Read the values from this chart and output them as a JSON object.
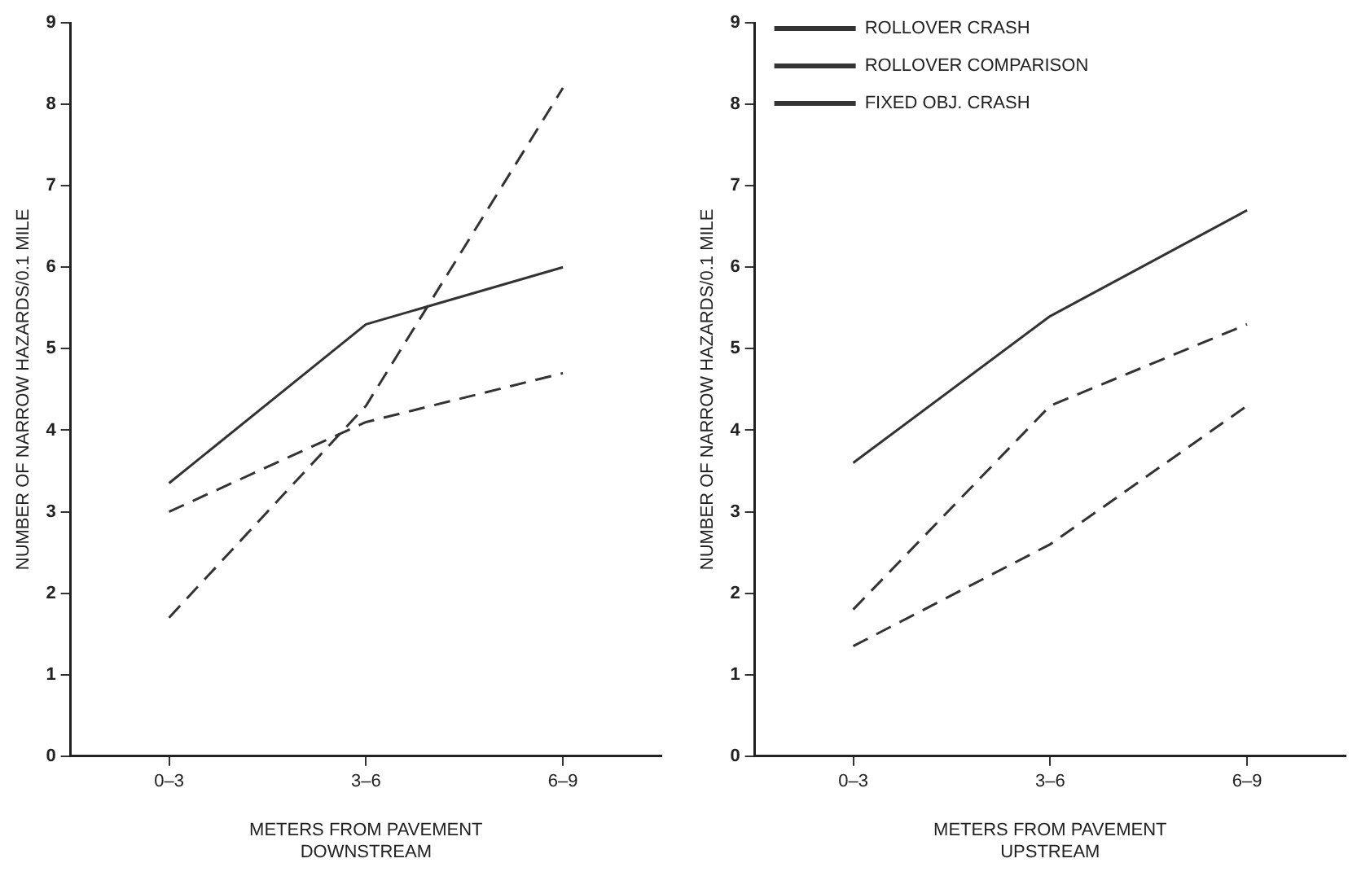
{
  "chart_data": [
    {
      "type": "line",
      "xlabel": "METERS FROM PAVEMENT\nDOWNSTREAM",
      "ylabel": "NUMBER OF NARROW HAZARDS/0.1 MILE",
      "categories": [
        "0–3",
        "3–6",
        "6–9"
      ],
      "series": [
        {
          "color": "#333333",
          "line_style": "dashed",
          "values": [
            1.7,
            4.3,
            8.2
          ]
        },
        {
          "color": "#333333",
          "line_style": "dashed",
          "values": [
            3.0,
            4.1,
            4.7
          ]
        },
        {
          "color": "#333333",
          "line_style": "solid",
          "values": [
            3.35,
            5.3,
            6.0
          ]
        }
      ],
      "ylim": [
        0,
        9
      ],
      "yticks": [
        0,
        1,
        2,
        3,
        4,
        5,
        6,
        7,
        8,
        9
      ],
      "grid": false,
      "legend": false,
      "marker": "none"
    },
    {
      "type": "line",
      "xlabel": "METERS FROM PAVEMENT\nUPSTREAM",
      "ylabel": "NUMBER OF NARROW HAZARDS/0.1 MILE",
      "categories": [
        "0–3",
        "3–6",
        "6–9"
      ],
      "series": [
        {
          "name": "ROLLOVER CRASH",
          "color": "#333333",
          "line_style": "dashed",
          "values": [
            1.8,
            4.3,
            5.3
          ]
        },
        {
          "name": "ROLLOVER COMPARISON",
          "color": "#333333",
          "line_style": "dashed",
          "values": [
            1.35,
            2.6,
            4.3
          ]
        },
        {
          "name": "FIXED OBJ. CRASH",
          "color": "#333333",
          "line_style": "solid",
          "values": [
            3.6,
            5.4,
            6.7
          ]
        }
      ],
      "ylim": [
        0,
        9
      ],
      "yticks": [
        0,
        1,
        2,
        3,
        4,
        5,
        6,
        7,
        8,
        9
      ],
      "grid": false,
      "legend": "top left",
      "marker": "none"
    }
  ]
}
